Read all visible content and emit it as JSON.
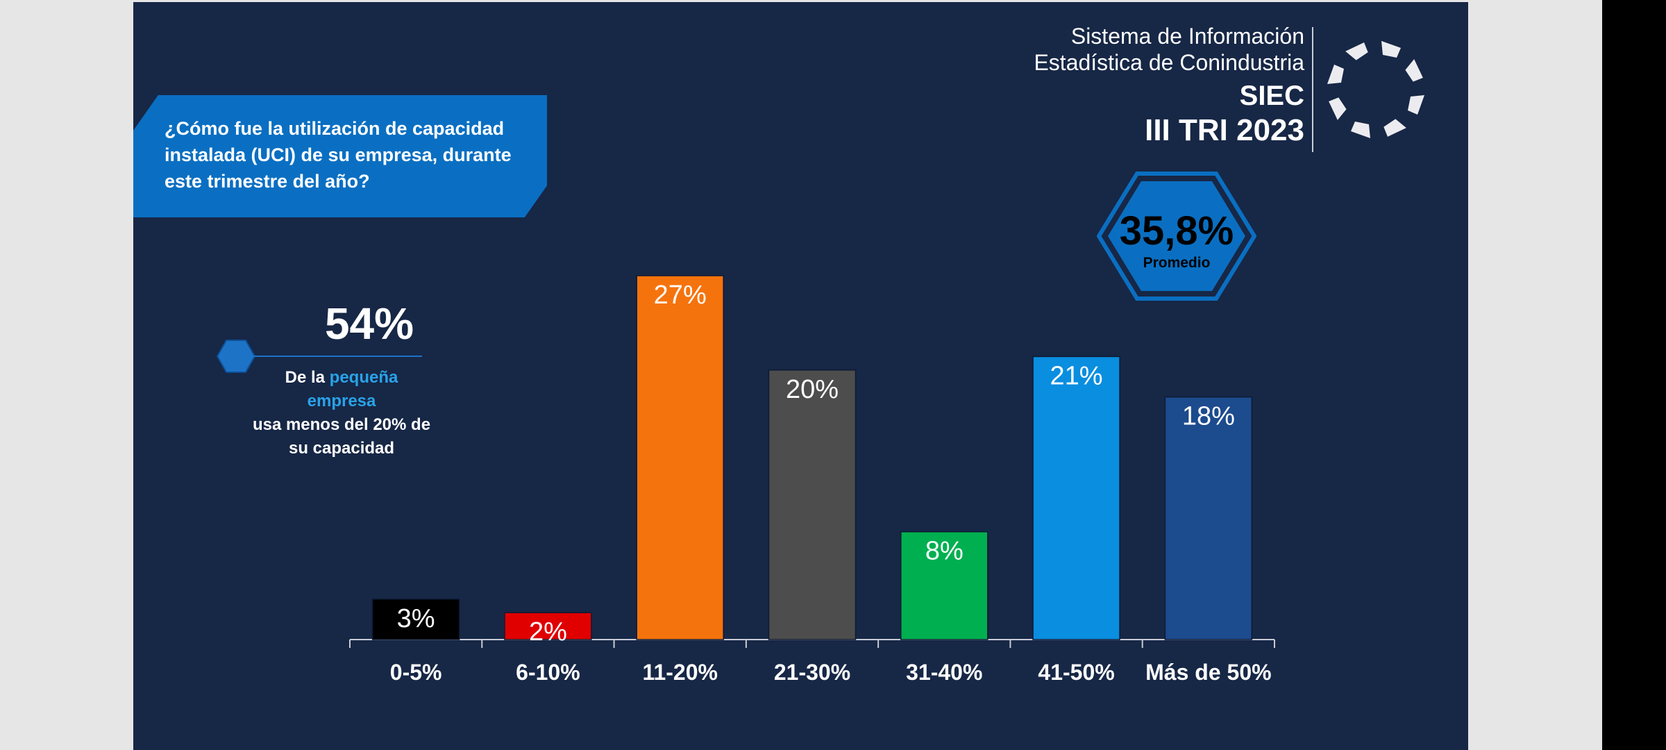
{
  "question": "¿Cómo fue la utilización de capacidad instalada (UCI) de su empresa, durante este trimestre del año?",
  "brand": {
    "line1": "Sistema de Información",
    "line2": "Estadística de Conindustria",
    "name": "SIEC",
    "period": "III TRI 2023"
  },
  "average": {
    "value": "35,8%",
    "label": "Promedio"
  },
  "callout": {
    "value": "54%",
    "prefix": "De la ",
    "highlight": "pequeña empresa",
    "rest": "usa menos del 20% de su capacidad"
  },
  "colors": {
    "background": "#172746",
    "accent": "#0a6fc2",
    "highlight": "#29a3e8"
  },
  "chart_data": {
    "type": "bar",
    "categories": [
      "0-5%",
      "6-10%",
      "11-20%",
      "21-30%",
      "31-40%",
      "41-50%",
      "Más de 50%"
    ],
    "values": [
      3,
      2,
      27,
      20,
      8,
      21,
      18
    ],
    "data_labels": [
      "3%",
      "2%",
      "27%",
      "20%",
      "8%",
      "21%",
      "18%"
    ],
    "colors": [
      "#000000",
      "#e00000",
      "#f5730d",
      "#4d4d4d",
      "#00b050",
      "#0a8ee0",
      "#1c4b8e"
    ],
    "title": "",
    "xlabel": "",
    "ylabel": "",
    "ylim": [
      0,
      27
    ],
    "grid": false
  }
}
